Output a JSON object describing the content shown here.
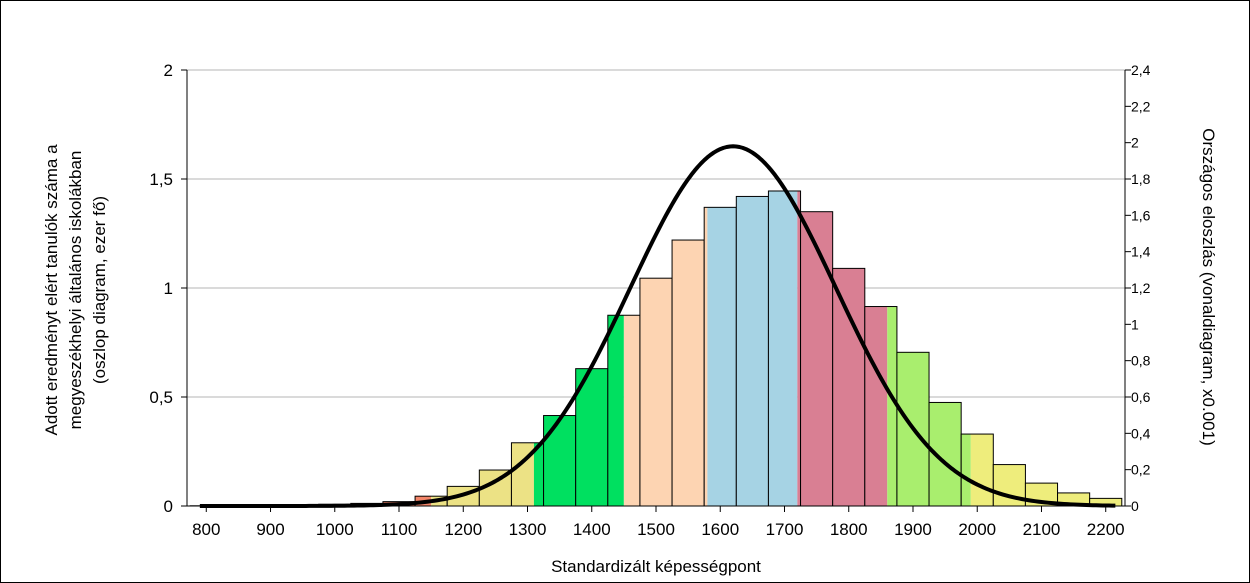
{
  "chart_data": {
    "type": "bar",
    "title": "",
    "xlabel": "Standardizált képességpont",
    "ylabel_lines": [
      "Adott eredményt elért tanulók száma a",
      "megyeszékhelyi általános iskolákban",
      "(oszlop diagram, ezer fő)"
    ],
    "y2label": "Országos eloszlás (vonaldiagram, x0.001)",
    "xlim": [
      770,
      2230
    ],
    "ylim": [
      0,
      2
    ],
    "y2lim": [
      0,
      2.4
    ],
    "x_ticks": [
      800,
      900,
      1000,
      1100,
      1200,
      1300,
      1400,
      1500,
      1600,
      1700,
      1800,
      1900,
      2000,
      2100,
      2200
    ],
    "y_ticks": [
      0,
      0.5,
      1,
      1.5,
      2
    ],
    "y_tick_labels": [
      "0",
      "0,5",
      "1",
      "1,5",
      "2"
    ],
    "y2_ticks": [
      0,
      0.2,
      0.4,
      0.6,
      0.8,
      1,
      1.2,
      1.4,
      1.6,
      1.8,
      2,
      2.2,
      2.4
    ],
    "y2_tick_labels": [
      "0",
      "0,2",
      "0,4",
      "0,6",
      "0,8",
      "1",
      "1,2",
      "1,4",
      "1,6",
      "1,8",
      "2",
      "2,2",
      "2,4"
    ],
    "grid": "horizontal",
    "bins": {
      "x_start": [
        775,
        825,
        875,
        925,
        975,
        1025,
        1075,
        1125,
        1175,
        1225,
        1275,
        1325,
        1375,
        1425,
        1475,
        1525,
        1575,
        1625,
        1675,
        1725,
        1775,
        1825,
        1875,
        1925,
        1975,
        2025,
        2075,
        2125,
        2175
      ],
      "x_end": [
        825,
        875,
        925,
        975,
        1025,
        1075,
        1125,
        1175,
        1225,
        1275,
        1325,
        1375,
        1425,
        1475,
        1525,
        1575,
        1625,
        1675,
        1725,
        1775,
        1825,
        1875,
        1925,
        1975,
        2025,
        2075,
        2125,
        2175,
        2225
      ],
      "values": [
        0.001,
        0.002,
        0.003,
        0.005,
        0.008,
        0.012,
        0.02,
        0.045,
        0.09,
        0.165,
        0.29,
        0.415,
        0.63,
        0.875,
        1.045,
        1.22,
        1.37,
        1.42,
        1.445,
        1.35,
        1.09,
        0.915,
        0.705,
        0.475,
        0.33,
        0.19,
        0.105,
        0.06,
        0.035
      ]
    },
    "bands": [
      {
        "from": 770,
        "to": 1150,
        "color": "#f4866a"
      },
      {
        "from": 1150,
        "to": 1310,
        "color": "#ece285"
      },
      {
        "from": 1310,
        "to": 1450,
        "color": "#00e060"
      },
      {
        "from": 1450,
        "to": 1580,
        "color": "#fdd4b2"
      },
      {
        "from": 1580,
        "to": 1720,
        "color": "#a6d3e4"
      },
      {
        "from": 1720,
        "to": 1860,
        "color": "#d97f93"
      },
      {
        "from": 1860,
        "to": 1990,
        "color": "#a9ee6e"
      },
      {
        "from": 1990,
        "to": 2230,
        "color": "#eeed7c"
      }
    ],
    "curve": {
      "mean": 1620,
      "sd": 160,
      "peak_y2": 1.98,
      "x_start": 790,
      "x_end": 2215,
      "color": "#000000"
    }
  }
}
